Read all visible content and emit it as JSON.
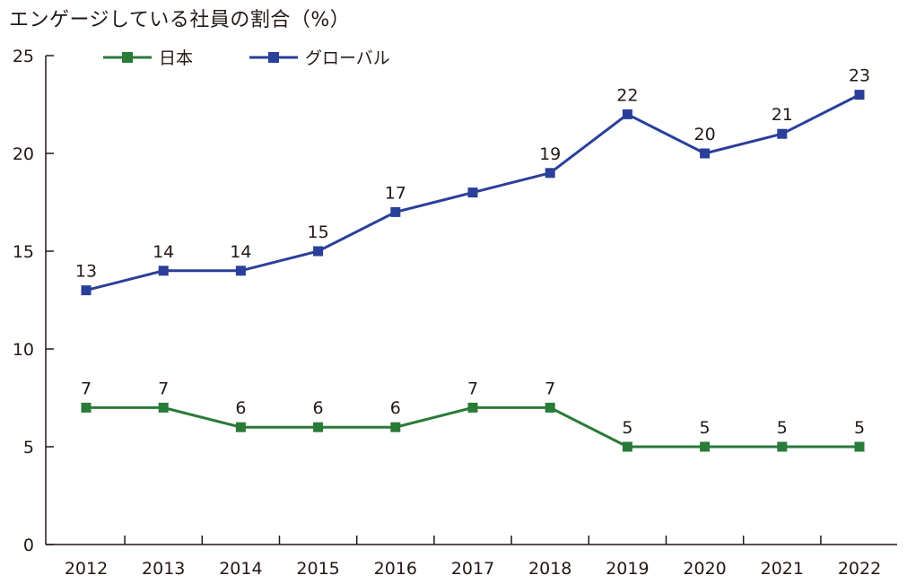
{
  "chart_data": {
    "type": "line",
    "title": "エンゲージしている社員の割合（%）",
    "categories": [
      "2012",
      "2013",
      "2014",
      "2015",
      "2016",
      "2017",
      "2018",
      "2019",
      "2020",
      "2021",
      "2022"
    ],
    "series": [
      {
        "name": "日本",
        "color": "#2a7a38",
        "values": [
          7,
          7,
          6,
          6,
          6,
          7,
          7,
          5,
          5,
          5,
          5
        ],
        "labels": [
          "7",
          "7",
          "6",
          "6",
          "6",
          "7",
          "7",
          "5",
          "5",
          "5",
          "5"
        ]
      },
      {
        "name": "グローバル",
        "color": "#2a3f9a",
        "values": [
          13,
          14,
          14,
          15,
          17,
          18,
          19,
          22,
          20,
          21,
          23
        ],
        "labels": [
          "13",
          "14",
          "14",
          "15",
          "17",
          "",
          "19",
          "22",
          "20",
          "21",
          "23"
        ]
      }
    ],
    "ylim": [
      0,
      25
    ],
    "yticks": [
      "0",
      "5",
      "10",
      "15",
      "20",
      "25"
    ],
    "xlabel": "",
    "ylabel": "",
    "legend": "top-left",
    "grid": false
  }
}
